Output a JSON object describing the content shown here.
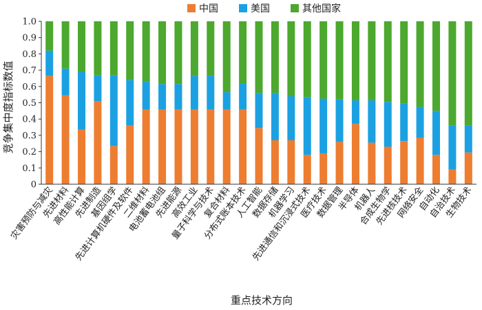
{
  "chart_data": {
    "type": "bar",
    "stacked": true,
    "xlabel": "重点技术方向",
    "ylabel": "竞争集中度指标数值",
    "ylim": [
      0,
      1.0
    ],
    "yticks": [
      "0",
      "0.1",
      "0.2",
      "0.3",
      "0.4",
      "0.5",
      "0.6",
      "0.7",
      "0.8",
      "0.9",
      "1.0"
    ],
    "legend_position": "top-center",
    "grid": false,
    "categories": [
      "灾害预防与减灾",
      "先进材料",
      "高性能计算",
      "先进制造",
      "基因组学",
      "先进计算机硬件及软件",
      "二维材料",
      "电池蓄电池组",
      "先进能源",
      "高效工业",
      "量子科学与技术",
      "复合材料",
      "分布式账本技术",
      "人工智能",
      "数据存储",
      "机器学习",
      "先进通信和沉浸式技术",
      "医疗技术",
      "数据管理",
      "半导体",
      "机器人",
      "合成生物学",
      "先进核技术",
      "网络安全",
      "自动化",
      "自治技术",
      "生物技术"
    ],
    "series": [
      {
        "name": "中国",
        "color": "#ed7d31",
        "values": [
          0.665,
          0.545,
          0.335,
          0.51,
          0.235,
          0.36,
          0.46,
          0.46,
          0.46,
          0.46,
          0.46,
          0.46,
          0.46,
          0.345,
          0.27,
          0.27,
          0.18,
          0.19,
          0.26,
          0.37,
          0.255,
          0.23,
          0.265,
          0.285,
          0.18,
          0.09,
          0.195
        ]
      },
      {
        "name": "美国",
        "color": "#1ba1e2",
        "values": [
          0.155,
          0.165,
          0.355,
          0.16,
          0.435,
          0.28,
          0.17,
          0.155,
          0.155,
          0.205,
          0.205,
          0.105,
          0.16,
          0.215,
          0.29,
          0.27,
          0.355,
          0.335,
          0.26,
          0.145,
          0.26,
          0.275,
          0.23,
          0.19,
          0.27,
          0.27,
          0.165
        ]
      },
      {
        "name": "其他国家",
        "color": "#4ca82e",
        "values": [
          0.18,
          0.29,
          0.31,
          0.33,
          0.33,
          0.36,
          0.37,
          0.385,
          0.385,
          0.335,
          0.335,
          0.435,
          0.38,
          0.44,
          0.44,
          0.46,
          0.465,
          0.475,
          0.48,
          0.485,
          0.485,
          0.495,
          0.505,
          0.525,
          0.55,
          0.64,
          0.64
        ]
      }
    ]
  }
}
